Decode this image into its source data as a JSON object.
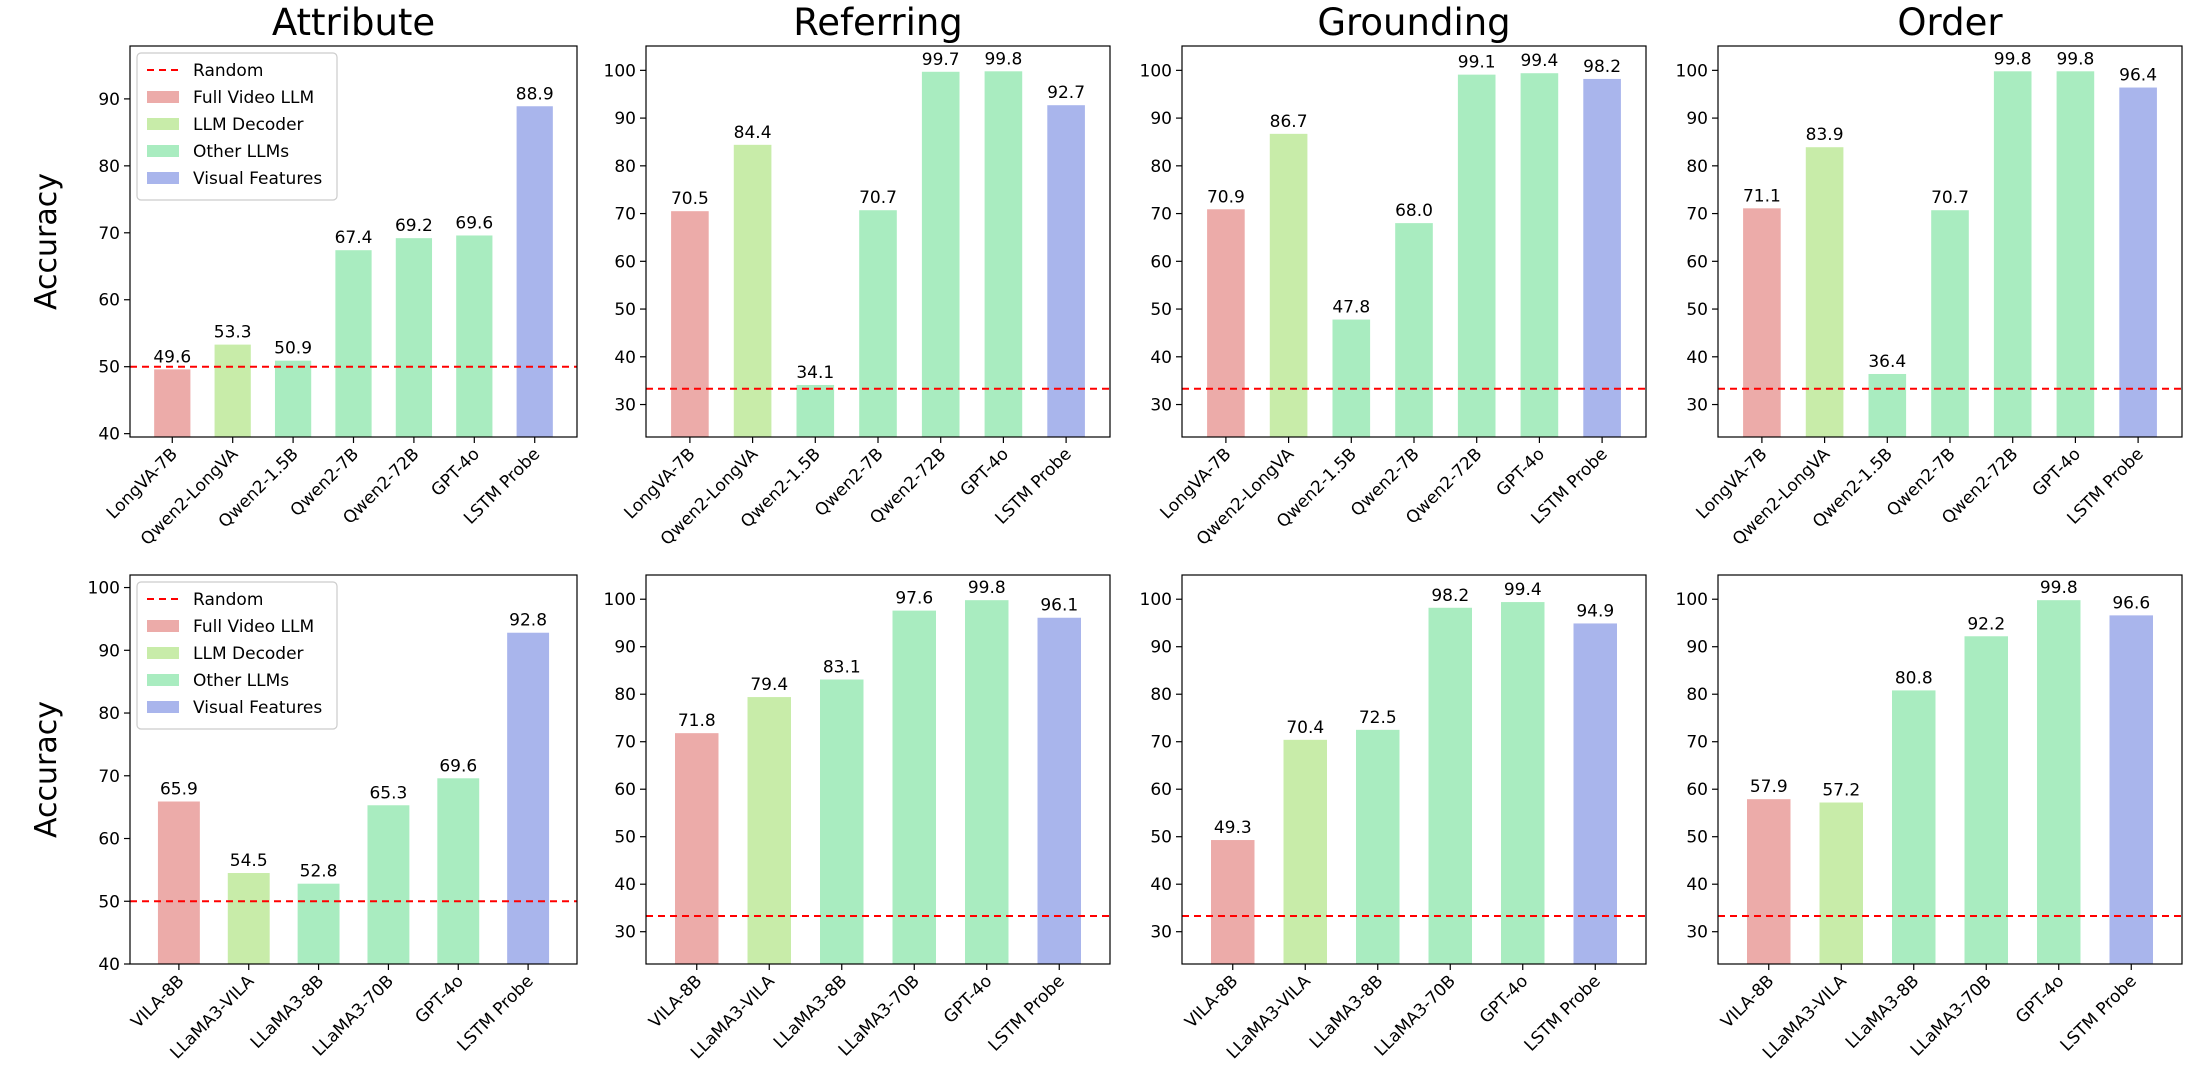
{
  "figure": {
    "ylabel": "Accuracy",
    "colors": {
      "Full Video LLM": "#ecaba9",
      "LLM Decoder": "#c8eca9",
      "Other LLMs": "#a9ecc0",
      "Visual Features": "#a9b5ec",
      "Random": "#ff0000"
    },
    "legend": [
      {
        "label": "Random",
        "kind": "line"
      },
      {
        "label": "Full Video LLM",
        "kind": "patch"
      },
      {
        "label": "LLM Decoder",
        "kind": "patch"
      },
      {
        "label": "Other LLMs",
        "kind": "patch"
      },
      {
        "label": "Visual Features",
        "kind": "patch"
      }
    ]
  },
  "chart_data": [
    {
      "type": "bar",
      "title": "Attribute",
      "ylabel": "Accuracy",
      "categories": [
        "LongVA-7B",
        "Qwen2-LongVA",
        "Qwen2-1.5B",
        "Qwen2-7B",
        "Qwen2-72B",
        "GPT-4o",
        "LSTM Probe"
      ],
      "groups": [
        "Full Video LLM",
        "LLM Decoder",
        "Other LLMs",
        "Other LLMs",
        "Other LLMs",
        "Other LLMs",
        "Visual Features"
      ],
      "values": [
        49.6,
        53.3,
        50.9,
        67.4,
        69.2,
        69.6,
        88.9
      ],
      "value_labels": [
        "49.6",
        "53.3",
        "50.9",
        "67.4",
        "69.2",
        "69.6",
        "88.9"
      ],
      "random": 50,
      "ylim": [
        39.5,
        97.9
      ],
      "yticks": [
        40,
        50,
        60,
        70,
        80,
        90
      ],
      "legend_placement": "top-left"
    },
    {
      "type": "bar",
      "title": "Referring",
      "categories": [
        "LongVA-7B",
        "Qwen2-LongVA",
        "Qwen2-1.5B",
        "Qwen2-7B",
        "Qwen2-72B",
        "GPT-4o",
        "LSTM Probe"
      ],
      "groups": [
        "Full Video LLM",
        "LLM Decoder",
        "Other LLMs",
        "Other LLMs",
        "Other LLMs",
        "Other LLMs",
        "Visual Features"
      ],
      "values": [
        70.5,
        84.4,
        34.1,
        70.7,
        99.7,
        99.8,
        92.7
      ],
      "value_labels": [
        "70.5",
        "84.4",
        "34.1",
        "70.7",
        "99.7",
        "99.8",
        "92.7"
      ],
      "random": 33.3,
      "ylim": [
        23.2,
        105.1
      ],
      "yticks": [
        30,
        40,
        50,
        60,
        70,
        80,
        90,
        100
      ]
    },
    {
      "type": "bar",
      "title": "Grounding",
      "categories": [
        "LongVA-7B",
        "Qwen2-LongVA",
        "Qwen2-1.5B",
        "Qwen2-7B",
        "Qwen2-72B",
        "GPT-4o",
        "LSTM Probe"
      ],
      "groups": [
        "Full Video LLM",
        "LLM Decoder",
        "Other LLMs",
        "Other LLMs",
        "Other LLMs",
        "Other LLMs",
        "Visual Features"
      ],
      "values": [
        70.9,
        86.7,
        47.8,
        68.0,
        99.1,
        99.4,
        98.2
      ],
      "value_labels": [
        "70.9",
        "86.7",
        "47.8",
        "68.0",
        "99.1",
        "99.4",
        "98.2"
      ],
      "random": 33.3,
      "ylim": [
        23.2,
        105.1
      ],
      "yticks": [
        30,
        40,
        50,
        60,
        70,
        80,
        90,
        100
      ]
    },
    {
      "type": "bar",
      "title": "Order",
      "categories": [
        "LongVA-7B",
        "Qwen2-LongVA",
        "Qwen2-1.5B",
        "Qwen2-7B",
        "Qwen2-72B",
        "GPT-4o",
        "LSTM Probe"
      ],
      "groups": [
        "Full Video LLM",
        "LLM Decoder",
        "Other LLMs",
        "Other LLMs",
        "Other LLMs",
        "Other LLMs",
        "Visual Features"
      ],
      "values": [
        71.1,
        83.9,
        36.4,
        70.7,
        99.8,
        99.8,
        96.4
      ],
      "value_labels": [
        "71.1",
        "83.9",
        "36.4",
        "70.7",
        "99.8",
        "99.8",
        "96.4"
      ],
      "random": 33.3,
      "ylim": [
        23.2,
        105.1
      ],
      "yticks": [
        30,
        40,
        50,
        60,
        70,
        80,
        90,
        100
      ]
    },
    {
      "type": "bar",
      "ylabel": "Accuracy",
      "categories": [
        "VILA-8B",
        "LLaMA3-VILA",
        "LLaMA3-8B",
        "LLaMA3-70B",
        "GPT-4o",
        "LSTM Probe"
      ],
      "groups": [
        "Full Video LLM",
        "LLM Decoder",
        "Other LLMs",
        "Other LLMs",
        "Other LLMs",
        "Visual Features"
      ],
      "values": [
        65.9,
        54.5,
        52.8,
        65.3,
        69.6,
        92.8
      ],
      "value_labels": [
        "65.9",
        "54.5",
        "52.8",
        "65.3",
        "69.6",
        "92.8"
      ],
      "random": 50,
      "ylim": [
        40,
        102
      ],
      "yticks": [
        40,
        50,
        60,
        70,
        80,
        90,
        100
      ],
      "legend_placement": "top-left"
    },
    {
      "type": "bar",
      "categories": [
        "VILA-8B",
        "LLaMA3-VILA",
        "LLaMA3-8B",
        "LLaMA3-70B",
        "GPT-4o",
        "LSTM Probe"
      ],
      "groups": [
        "Full Video LLM",
        "LLM Decoder",
        "Other LLMs",
        "Other LLMs",
        "Other LLMs",
        "Visual Features"
      ],
      "values": [
        71.8,
        79.4,
        83.1,
        97.6,
        99.8,
        96.1
      ],
      "value_labels": [
        "71.8",
        "79.4",
        "83.1",
        "97.6",
        "99.8",
        "96.1"
      ],
      "random": 33.3,
      "ylim": [
        23.2,
        105.1
      ],
      "yticks": [
        30,
        40,
        50,
        60,
        70,
        80,
        90,
        100
      ]
    },
    {
      "type": "bar",
      "categories": [
        "VILA-8B",
        "LLaMA3-VILA",
        "LLaMA3-8B",
        "LLaMA3-70B",
        "GPT-4o",
        "LSTM Probe"
      ],
      "groups": [
        "Full Video LLM",
        "LLM Decoder",
        "Other LLMs",
        "Other LLMs",
        "Other LLMs",
        "Visual Features"
      ],
      "values": [
        49.3,
        70.4,
        72.5,
        98.2,
        99.4,
        94.9
      ],
      "value_labels": [
        "49.3",
        "70.4",
        "72.5",
        "98.2",
        "99.4",
        "94.9"
      ],
      "random": 33.3,
      "ylim": [
        23.2,
        105.1
      ],
      "yticks": [
        30,
        40,
        50,
        60,
        70,
        80,
        90,
        100
      ]
    },
    {
      "type": "bar",
      "categories": [
        "VILA-8B",
        "LLaMA3-VILA",
        "LLaMA3-8B",
        "LLaMA3-70B",
        "GPT-4o",
        "LSTM Probe"
      ],
      "groups": [
        "Full Video LLM",
        "LLM Decoder",
        "Other LLMs",
        "Other LLMs",
        "Other LLMs",
        "Visual Features"
      ],
      "values": [
        57.9,
        57.2,
        80.8,
        92.2,
        99.8,
        96.6
      ],
      "value_labels": [
        "57.9",
        "57.2",
        "80.8",
        "92.2",
        "99.8",
        "96.6"
      ],
      "random": 33.3,
      "ylim": [
        23.2,
        105.1
      ],
      "yticks": [
        30,
        40,
        50,
        60,
        70,
        80,
        90,
        100
      ]
    }
  ]
}
